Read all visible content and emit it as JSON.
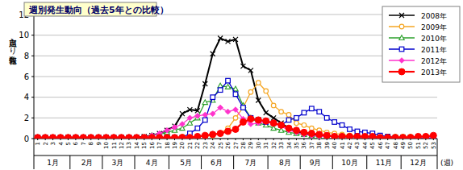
{
  "chart_data": {
    "type": "line",
    "title": "週別発生動向（過去5年との比較）",
    "y_label": "定点当たり報告数",
    "x_label": "(週)",
    "categories": [
      "1",
      "2",
      "3",
      "4",
      "5",
      "6",
      "7",
      "8",
      "9",
      "10",
      "11",
      "12",
      "13",
      "14",
      "15",
      "16",
      "17",
      "18",
      "19",
      "20",
      "21",
      "22",
      "23",
      "24",
      "25",
      "26",
      "27",
      "28",
      "29",
      "30",
      "31",
      "32",
      "33",
      "34",
      "35",
      "36",
      "37",
      "38",
      "39",
      "40",
      "41",
      "42",
      "43",
      "44",
      "45",
      "46",
      "47",
      "48",
      "49",
      "50",
      "51",
      "52",
      "53"
    ],
    "annotations": [
      {
        "text": "1月",
        "x": 3
      },
      {
        "text": "2月",
        "x": 7.5
      },
      {
        "text": "3月",
        "x": 11.5
      },
      {
        "text": "4月",
        "x": 16
      },
      {
        "text": "5月",
        "x": 20.5
      },
      {
        "text": "6月",
        "x": 24.5
      },
      {
        "text": "7月",
        "x": 29
      },
      {
        "text": "8月",
        "x": 33.5
      },
      {
        "text": "9月",
        "x": 37.5
      },
      {
        "text": "10月",
        "x": 42
      },
      {
        "text": "11月",
        "x": 46.5
      },
      {
        "text": "12月",
        "x": 51
      }
    ],
    "ylim": [
      0,
      12
    ],
    "yticks": [
      0,
      2,
      4,
      6,
      8,
      10,
      12
    ],
    "grid": true,
    "legend": "upper right",
    "series": [
      {
        "name": "2008年",
        "color": "#000000",
        "marker": "x",
        "line_style": "solid",
        "values": [
          0.1,
          0.1,
          0.1,
          0.1,
          0.1,
          0.1,
          0.1,
          0.1,
          0.1,
          0.1,
          0.1,
          0.1,
          0.1,
          0.1,
          0.2,
          0.3,
          0.5,
          0.8,
          1.2,
          2.4,
          2.8,
          2.7,
          5.3,
          8.2,
          9.7,
          9.4,
          9.6,
          7.0,
          6.6,
          3.7,
          2.5,
          2.0,
          1.5,
          1.0,
          0.7,
          0.5,
          0.4,
          0.3,
          0.3,
          0.2,
          0.2,
          0.2,
          0.2,
          0.1,
          0.1,
          0.1,
          0.1,
          0.1,
          0.1,
          0.1,
          0.1,
          0.1,
          0.1
        ]
      },
      {
        "name": "2009年",
        "color": "#f5a623",
        "marker": "circle",
        "line_style": "solid",
        "values": [
          0.1,
          0.1,
          0.1,
          0.1,
          0.1,
          0.1,
          0.1,
          0.1,
          0.1,
          0.1,
          0.1,
          0.1,
          0.1,
          0.1,
          0.1,
          0.1,
          0.1,
          0.1,
          0.1,
          0.2,
          0.2,
          0.2,
          0.2,
          0.3,
          0.5,
          1.0,
          2.0,
          3.0,
          4.5,
          5.4,
          4.6,
          3.2,
          2.6,
          2.3,
          1.5,
          1.3,
          1.0,
          0.8,
          0.6,
          0.5,
          0.4,
          0.3,
          0.3,
          0.2,
          0.2,
          0.2,
          0.2,
          0.2,
          0.2,
          0.2,
          0.2,
          0.2,
          0.2
        ]
      },
      {
        "name": "2010年",
        "color": "#2ca02c",
        "marker": "triangle",
        "line_style": "solid",
        "values": [
          0.1,
          0.1,
          0.1,
          0.1,
          0.1,
          0.1,
          0.1,
          0.1,
          0.1,
          0.1,
          0.1,
          0.1,
          0.1,
          0.1,
          0.1,
          0.3,
          0.4,
          0.6,
          0.8,
          1.0,
          1.5,
          2.0,
          3.5,
          3.7,
          5.1,
          5.0,
          4.8,
          3.2,
          2.0,
          1.5,
          1.3,
          1.0,
          0.8,
          0.6,
          0.5,
          0.4,
          0.3,
          0.2,
          0.2,
          0.2,
          0.2,
          0.2,
          0.2,
          0.1,
          0.1,
          0.1,
          0.1,
          0.1,
          0.1,
          0.1,
          0.1,
          0.1,
          0.1
        ]
      },
      {
        "name": "2011年",
        "color": "#0000cc",
        "marker": "square",
        "line_style": "solid",
        "values": [
          0.1,
          0.1,
          0.1,
          0.1,
          0.1,
          0.1,
          0.1,
          0.1,
          0.1,
          0.1,
          0.1,
          0.1,
          0.1,
          0.1,
          0.1,
          0.1,
          0.1,
          0.1,
          0.1,
          0.1,
          0.5,
          1.0,
          1.8,
          4.0,
          4.7,
          5.6,
          4.3,
          3.0,
          2.0,
          1.8,
          1.6,
          1.5,
          1.3,
          1.8,
          2.0,
          2.5,
          2.9,
          2.6,
          2.0,
          1.6,
          1.3,
          0.9,
          0.7,
          0.6,
          0.5,
          0.3,
          0.2,
          0.1,
          0.1,
          0.1,
          0.1,
          0.1,
          0.1
        ]
      },
      {
        "name": "2012年",
        "color": "#ff33cc",
        "marker": "diamond",
        "line_style": "solid",
        "values": [
          0.1,
          0.1,
          0.1,
          0.1,
          0.1,
          0.1,
          0.1,
          0.1,
          0.1,
          0.1,
          0.1,
          0.1,
          0.1,
          0.1,
          0.1,
          0.3,
          0.5,
          0.8,
          1.1,
          1.4,
          2.0,
          2.2,
          2.3,
          2.4,
          3.0,
          2.6,
          2.8,
          1.9,
          1.4,
          1.5,
          1.6,
          1.5,
          1.2,
          0.8,
          0.6,
          0.4,
          0.3,
          0.2,
          0.2,
          0.2,
          0.2,
          0.2,
          0.2,
          0.1,
          0.1,
          0.1,
          0.1,
          0.1,
          0.1,
          0.1,
          0.1,
          0.1,
          0.1
        ]
      },
      {
        "name": "2013年",
        "color": "#ff0000",
        "marker": "big-circle",
        "line_style": "solid",
        "values": [
          0.1,
          0.1,
          0.1,
          0.1,
          0.1,
          0.1,
          0.1,
          0.1,
          0.1,
          0.1,
          0.1,
          0.1,
          0.1,
          0.1,
          0.1,
          0.1,
          0.1,
          0.1,
          0.1,
          0.1,
          0.1,
          0.2,
          0.3,
          0.4,
          0.5,
          0.7,
          0.9,
          1.6,
          1.9,
          1.8,
          1.7,
          1.5,
          1.3,
          1.0,
          0.8,
          0.6,
          0.5,
          0.4,
          0.3,
          0.2,
          0.2,
          0.2,
          0.2,
          0.2,
          0.2,
          0.1,
          0.1,
          0.1,
          0.1,
          0.1,
          0.2,
          0.2,
          0.3
        ]
      }
    ]
  }
}
